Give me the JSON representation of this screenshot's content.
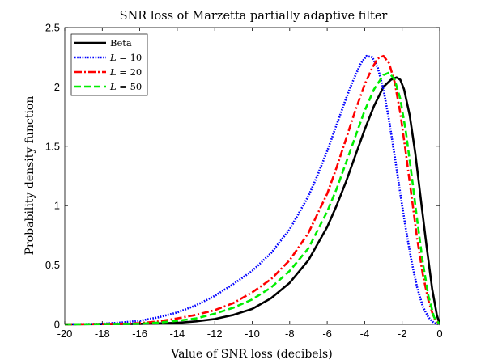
{
  "chart_data": {
    "type": "line",
    "title": "SNR loss of Marzetta partially adaptive filter",
    "xlabel": "Value of SNR loss (decibels)",
    "ylabel": "Probability density function",
    "xlim": [
      -20,
      0
    ],
    "ylim": [
      0,
      2.5
    ],
    "xticks": [
      -20,
      -18,
      -16,
      -14,
      -12,
      -10,
      -8,
      -6,
      -4,
      -2,
      0
    ],
    "yticks": [
      0,
      0.5,
      1,
      1.5,
      2,
      2.5
    ],
    "xtick_labels": [
      "-20",
      "-18",
      "-16",
      "-14",
      "-12",
      "-10",
      "-8",
      "-6",
      "-4",
      "-2",
      "0"
    ],
    "ytick_labels": [
      "0",
      "0.5",
      "1",
      "1.5",
      "2",
      "2.5"
    ],
    "grid": false,
    "legend_position": "top-left",
    "series": [
      {
        "name": "Beta",
        "legend_var": "",
        "legend_eq": "",
        "color": "#000000",
        "style": "solid",
        "x": [
          -20,
          -16,
          -14,
          -13,
          -12,
          -11,
          -10,
          -9,
          -8,
          -7,
          -6,
          -5.5,
          -5,
          -4.5,
          -4,
          -3.5,
          -3,
          -2.6,
          -2.3,
          -2.1,
          -1.9,
          -1.6,
          -1.3,
          -1.0,
          -0.7,
          -0.4,
          -0.15,
          0
        ],
        "y": [
          0,
          0.004,
          0.012,
          0.025,
          0.045,
          0.08,
          0.13,
          0.22,
          0.35,
          0.54,
          0.82,
          1.0,
          1.2,
          1.42,
          1.64,
          1.84,
          2.0,
          2.06,
          2.08,
          2.06,
          1.98,
          1.76,
          1.44,
          1.05,
          0.66,
          0.3,
          0.08,
          0
        ]
      },
      {
        "name": "",
        "legend_var": "L",
        "legend_eq": " = 10",
        "color": "#0000ff",
        "style": "dotted",
        "x": [
          -20,
          -18,
          -17,
          -16,
          -15,
          -14,
          -13,
          -12,
          -11,
          -10,
          -9,
          -8,
          -7,
          -6.5,
          -6,
          -5.5,
          -5,
          -4.6,
          -4.2,
          -3.9,
          -3.6,
          -3.3,
          -3.0,
          -2.7,
          -2.4,
          -2.1,
          -1.8,
          -1.5,
          -1.2,
          -0.9,
          -0.6,
          -0.3,
          0
        ],
        "y": [
          0,
          0.005,
          0.015,
          0.03,
          0.06,
          0.1,
          0.16,
          0.24,
          0.34,
          0.45,
          0.6,
          0.8,
          1.08,
          1.26,
          1.46,
          1.68,
          1.9,
          2.06,
          2.2,
          2.26,
          2.25,
          2.16,
          1.98,
          1.72,
          1.42,
          1.1,
          0.8,
          0.53,
          0.31,
          0.15,
          0.06,
          0.01,
          0
        ]
      },
      {
        "name": "",
        "legend_var": "L",
        "legend_eq": " = 20",
        "color": "#ff0000",
        "style": "dashdot",
        "x": [
          -20,
          -17,
          -16,
          -15,
          -14,
          -13,
          -12,
          -11,
          -10,
          -9,
          -8,
          -7,
          -6,
          -5.5,
          -5,
          -4.5,
          -4,
          -3.6,
          -3.3,
          -3.0,
          -2.7,
          -2.4,
          -2.1,
          -1.8,
          -1.5,
          -1.2,
          -0.9,
          -0.6,
          -0.3,
          0
        ],
        "y": [
          0,
          0.005,
          0.01,
          0.025,
          0.05,
          0.08,
          0.12,
          0.18,
          0.27,
          0.38,
          0.54,
          0.77,
          1.1,
          1.32,
          1.56,
          1.8,
          2.02,
          2.16,
          2.24,
          2.26,
          2.2,
          2.04,
          1.78,
          1.44,
          1.08,
          0.72,
          0.42,
          0.2,
          0.05,
          0
        ]
      },
      {
        "name": "",
        "legend_var": "L",
        "legend_eq": " = 50",
        "color": "#00ee00",
        "style": "dashed",
        "x": [
          -20,
          -16,
          -15,
          -14,
          -13,
          -12,
          -11,
          -10,
          -9,
          -8,
          -7,
          -6,
          -5.5,
          -5,
          -4.5,
          -4,
          -3.5,
          -3.0,
          -2.7,
          -2.4,
          -2.1,
          -1.8,
          -1.5,
          -1.2,
          -0.9,
          -0.6,
          -0.3,
          0
        ],
        "y": [
          0,
          0.005,
          0.015,
          0.03,
          0.05,
          0.09,
          0.14,
          0.21,
          0.31,
          0.45,
          0.64,
          0.95,
          1.14,
          1.36,
          1.58,
          1.8,
          1.98,
          2.1,
          2.12,
          2.06,
          1.9,
          1.62,
          1.26,
          0.88,
          0.52,
          0.24,
          0.06,
          0
        ]
      }
    ]
  }
}
